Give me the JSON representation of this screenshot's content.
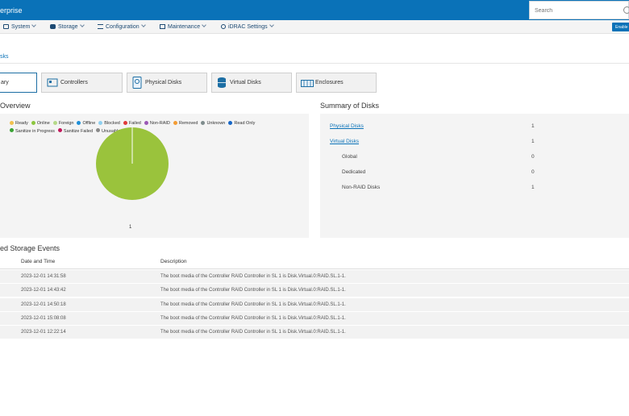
{
  "header": {
    "brand": "erprise",
    "search_placeholder": "Search"
  },
  "nav": {
    "items": [
      {
        "label": "System"
      },
      {
        "label": "Storage"
      },
      {
        "label": "Configuration"
      },
      {
        "label": "Maintenance"
      },
      {
        "label": "iDRAC Settings"
      }
    ],
    "enable_label": "Enable"
  },
  "breadcrumb": "sks",
  "tabs": [
    {
      "label": "ary"
    },
    {
      "label": "Controllers"
    },
    {
      "label": "Physical Disks"
    },
    {
      "label": "Virtual Disks"
    },
    {
      "label": "Enclosures"
    }
  ],
  "overview": {
    "title": "Overview",
    "legend": [
      {
        "label": "Ready",
        "color": "#f2c14e"
      },
      {
        "label": "Online",
        "color": "#8cc63f"
      },
      {
        "label": "Foreign",
        "color": "#b5d989"
      },
      {
        "label": "Offline",
        "color": "#1e8fd8"
      },
      {
        "label": "Blocked",
        "color": "#8fd0f0"
      },
      {
        "label": "Failed",
        "color": "#e03a3a"
      },
      {
        "label": "Non-RAID",
        "color": "#9b59b6"
      },
      {
        "label": "Removed",
        "color": "#f39c34"
      },
      {
        "label": "Unknown",
        "color": "#7f8c8d"
      },
      {
        "label": "Read Only",
        "color": "#1666c7"
      },
      {
        "label": "Sanitize in Progress",
        "color": "#3aa335"
      },
      {
        "label": "Sanitize Failed",
        "color": "#c2185b"
      },
      {
        "label": "Unusable",
        "color": "#8a8a8a"
      }
    ],
    "pie_color": "#9ac33c",
    "pie_value_label": "1"
  },
  "chart_data": {
    "type": "pie",
    "categories": [
      "Online"
    ],
    "values": [
      1
    ],
    "title": "",
    "xlabel": "",
    "ylabel": ""
  },
  "summary": {
    "title": "Summary of Disks",
    "rows": [
      {
        "label": "Physical Disks",
        "value": "1"
      },
      {
        "label": "Virtual Disks",
        "value": "1"
      },
      {
        "label": "Global",
        "value": "0"
      },
      {
        "label": "Dedicated",
        "value": "0"
      },
      {
        "label": "Non-RAID Disks",
        "value": "1"
      }
    ]
  },
  "events": {
    "title": "ed Storage Events",
    "col_date": "Date and Time",
    "col_desc": "Description",
    "rows": [
      {
        "date": "2023-12-01 14:31:58",
        "desc": "The boot media of the Controller RAID Controller in SL 1 is Disk.Virtual.0:RAID.SL.1-1."
      },
      {
        "date": "2023-12-01 14:43:42",
        "desc": "The boot media of the Controller RAID Controller in SL 1 is Disk.Virtual.0:RAID.SL.1-1."
      },
      {
        "date": "2023-12-01 14:50:18",
        "desc": "The boot media of the Controller RAID Controller in SL 1 is Disk.Virtual.0:RAID.SL.1-1."
      },
      {
        "date": "2023-12-01 15:08:08",
        "desc": "The boot media of the Controller RAID Controller in SL 1 is Disk.Virtual.0:RAID.SL.1-1."
      },
      {
        "date": "2023-12-01 12:22:14",
        "desc": "The boot media of the Controller RAID Controller in SL 1 is Disk.Virtual.0:RAID.SL.1-1."
      }
    ]
  }
}
